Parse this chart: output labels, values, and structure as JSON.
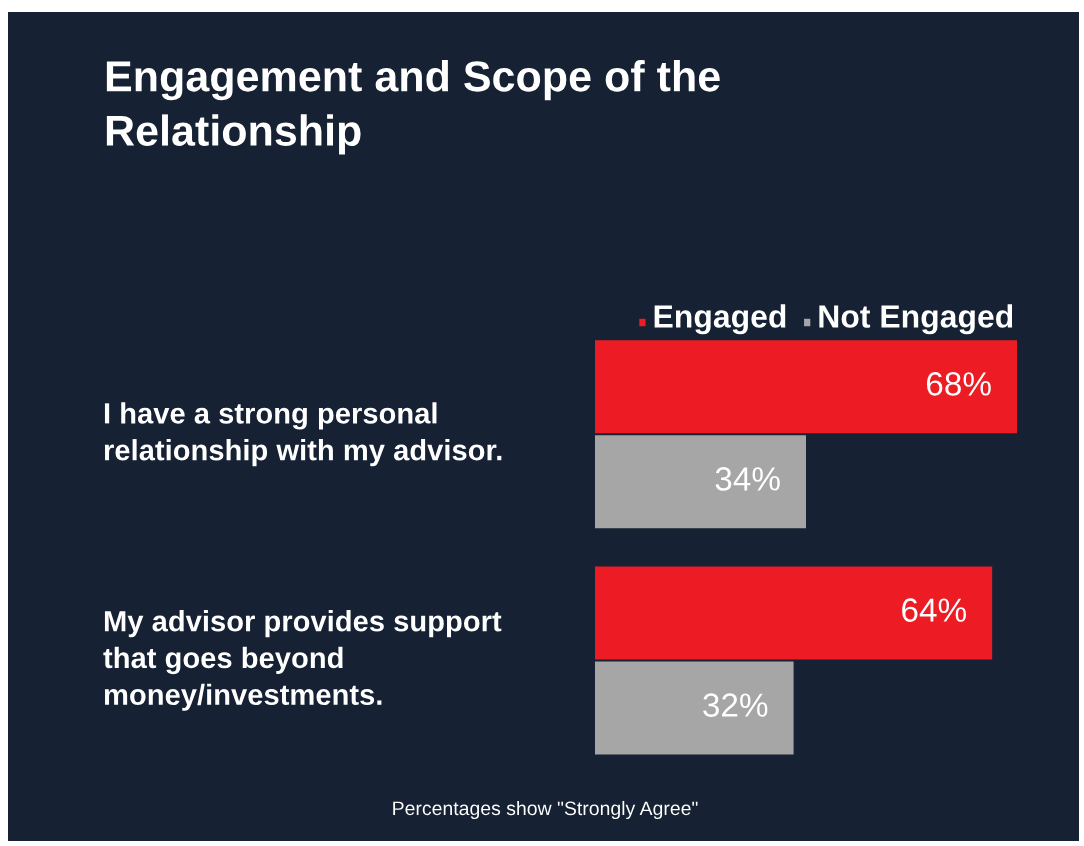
{
  "chart_data": {
    "type": "bar",
    "orientation": "horizontal",
    "title": "Engagement and Scope of the\nRelationship",
    "categories": [
      "I have a strong personal\nrelationship with my advisor.",
      "My advisor provides support\nthat goes beyond\nmoney/investments."
    ],
    "series": [
      {
        "name": "Engaged",
        "color": "#ed1c24",
        "values": [
          68,
          64
        ],
        "value_labels": [
          "68%",
          "64%"
        ]
      },
      {
        "name": "Not Engaged",
        "color": "#a6a6a6",
        "values": [
          34,
          32
        ],
        "value_labels": [
          "34%",
          "32%"
        ]
      }
    ],
    "legend": "top right",
    "tick_labels": false,
    "annotations": [
      "Percentages show \"Strongly Agree\""
    ]
  }
}
